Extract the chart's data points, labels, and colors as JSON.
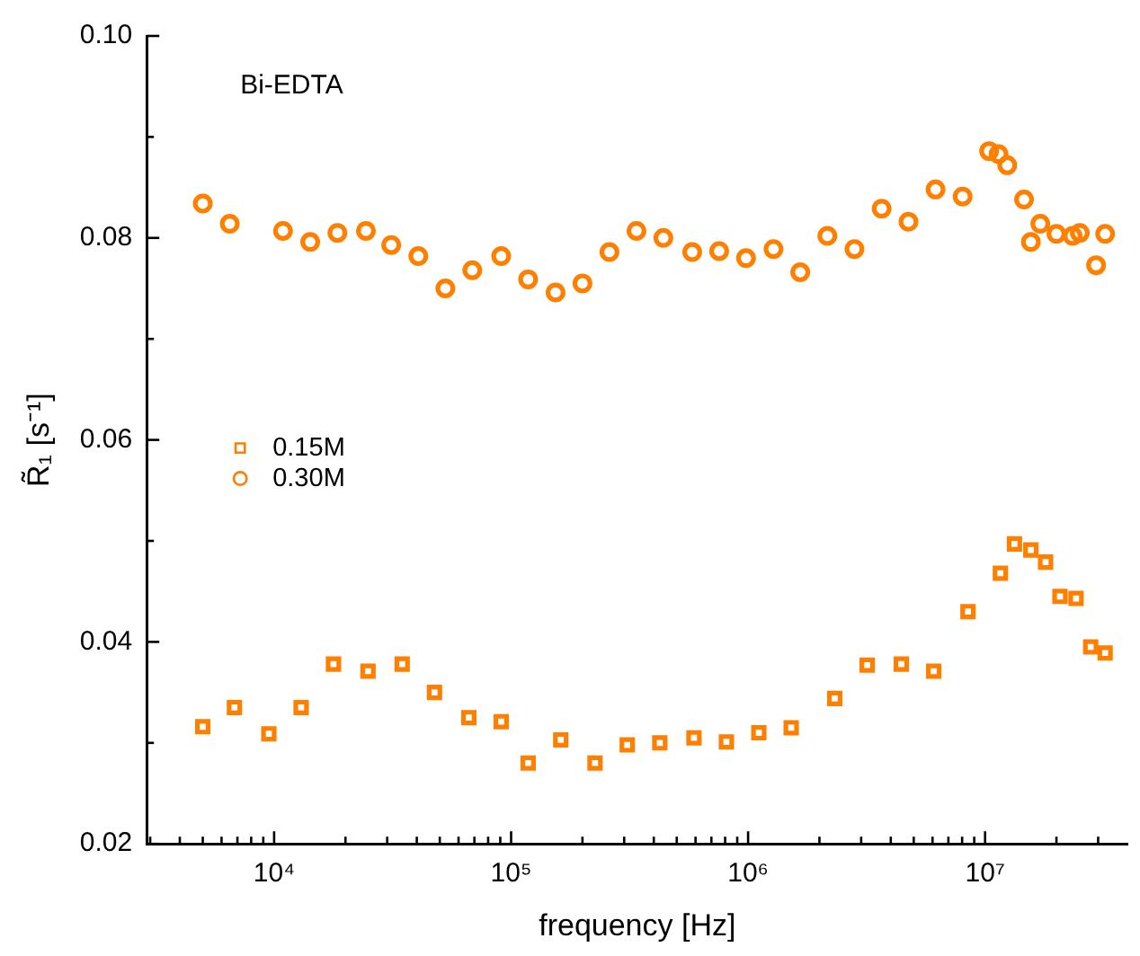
{
  "chart_data": {
    "type": "scatter",
    "xlabel": "frequency [Hz]",
    "ylabel": "R̃₁ [s⁻¹]",
    "annotations": [
      "Bi-EDTA"
    ],
    "log": "x",
    "legend": "left",
    "grid": false,
    "xlim": [
      2900,
      40000000
    ],
    "xticks": [
      {
        "value": 3000,
        "label": null
      },
      {
        "value": 4000,
        "label": null
      },
      {
        "value": 5000,
        "label": null
      },
      {
        "value": 6000,
        "label": null
      },
      {
        "value": 7000,
        "label": null
      },
      {
        "value": 8000,
        "label": null
      },
      {
        "value": 9000,
        "label": null
      },
      {
        "value": 10000,
        "label": "10⁴"
      },
      {
        "value": 20000,
        "label": null
      },
      {
        "value": 30000,
        "label": null
      },
      {
        "value": 40000,
        "label": null
      },
      {
        "value": 50000,
        "label": null
      },
      {
        "value": 60000,
        "label": null
      },
      {
        "value": 70000,
        "label": null
      },
      {
        "value": 80000,
        "label": null
      },
      {
        "value": 90000,
        "label": null
      },
      {
        "value": 100000,
        "label": "10⁵"
      },
      {
        "value": 200000,
        "label": null
      },
      {
        "value": 300000,
        "label": null
      },
      {
        "value": 400000,
        "label": null
      },
      {
        "value": 500000,
        "label": null
      },
      {
        "value": 600000,
        "label": null
      },
      {
        "value": 700000,
        "label": null
      },
      {
        "value": 800000,
        "label": null
      },
      {
        "value": 900000,
        "label": null
      },
      {
        "value": 1000000,
        "label": "10⁶"
      },
      {
        "value": 2000000,
        "label": null
      },
      {
        "value": 3000000,
        "label": null
      },
      {
        "value": 4000000,
        "label": null
      },
      {
        "value": 5000000,
        "label": null
      },
      {
        "value": 6000000,
        "label": null
      },
      {
        "value": 7000000,
        "label": null
      },
      {
        "value": 8000000,
        "label": null
      },
      {
        "value": 9000000,
        "label": null
      },
      {
        "value": 10000000,
        "label": "10⁷"
      },
      {
        "value": 20000000,
        "label": null
      },
      {
        "value": 30000000,
        "label": null
      }
    ],
    "ylim": [
      0.02,
      0.1
    ],
    "yticks": [
      0.02,
      {
        "value": 0.03,
        "label": null
      },
      0.04,
      {
        "value": 0.05,
        "label": null
      },
      0.06,
      {
        "value": 0.07,
        "label": null
      },
      0.08,
      {
        "value": 0.09,
        "label": null
      },
      {
        "value": 0.1,
        "label": "0.10"
      }
    ],
    "series": [
      {
        "name": "0.15M",
        "color": "#ff7f00",
        "marker": "square",
        "x": [
          5000,
          6800,
          9500,
          13000,
          17800,
          24900,
          34700,
          47500,
          66300,
          90800,
          118000,
          162000,
          226000,
          309000,
          424000,
          591000,
          810000,
          1110000,
          1520000,
          2320000,
          3180000,
          4430000,
          6070000,
          8470000,
          11600000,
          13300000,
          15600000,
          18000000,
          20700000,
          24200000,
          27900000,
          32100000
        ],
        "values": [
          0.0316,
          0.0335,
          0.0309,
          0.0335,
          0.0378,
          0.0371,
          0.0378,
          0.035,
          0.0325,
          0.0321,
          0.028,
          0.0303,
          0.028,
          0.0298,
          0.03,
          0.0305,
          0.0301,
          0.031,
          0.0315,
          0.0344,
          0.0377,
          0.0378,
          0.0371,
          0.043,
          0.0468,
          0.0497,
          0.0491,
          0.0479,
          0.0445,
          0.0443,
          0.0395,
          0.0389
        ]
      },
      {
        "name": "0.30M",
        "color": "#ff7f00",
        "marker": "circle",
        "x": [
          5000,
          6500,
          10900,
          14200,
          18500,
          24400,
          31200,
          40600,
          52800,
          68600,
          90800,
          118000,
          154000,
          200000,
          260000,
          338000,
          439000,
          581000,
          755000,
          980000,
          1280000,
          1660000,
          2160000,
          2810000,
          3660000,
          4750000,
          6180000,
          8040000,
          10400000,
          11400000,
          12400000,
          14600000,
          15600000,
          17100000,
          20000000,
          23400000,
          25100000,
          29400000,
          32100000
        ],
        "values": [
          0.0834,
          0.0814,
          0.0807,
          0.0796,
          0.0805,
          0.0807,
          0.0793,
          0.0782,
          0.075,
          0.0768,
          0.0782,
          0.0759,
          0.0746,
          0.0755,
          0.0786,
          0.0807,
          0.08,
          0.0786,
          0.0787,
          0.078,
          0.0789,
          0.0766,
          0.0802,
          0.0789,
          0.0829,
          0.0816,
          0.0848,
          0.0841,
          0.0886,
          0.0883,
          0.0872,
          0.0838,
          0.0796,
          0.0814,
          0.0804,
          0.0802,
          0.0805,
          0.0773,
          0.0804
        ]
      }
    ]
  }
}
